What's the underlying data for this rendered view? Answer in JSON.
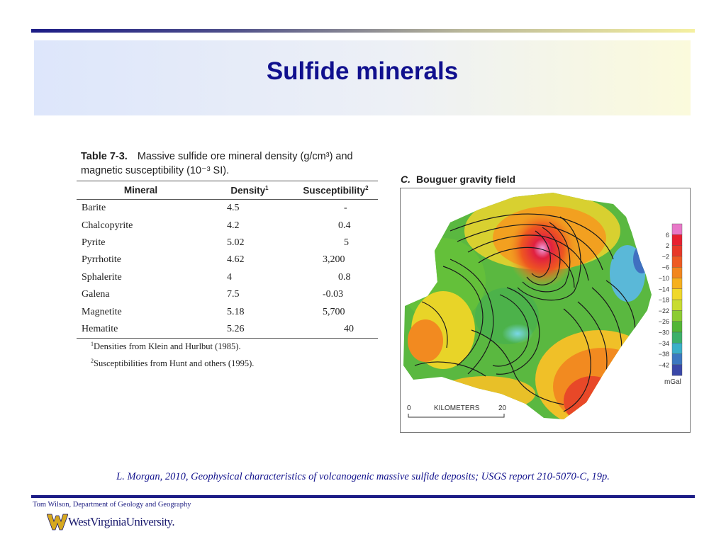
{
  "slide": {
    "title": "Sulfide minerals"
  },
  "table": {
    "number": "Table 7-3.",
    "caption_line1": "Massive sulfide ore mineral density (g/cm³) and",
    "caption_line2": "magnetic susceptibility (10⁻³ SI).",
    "headers": {
      "mineral": "Mineral",
      "density": "Density",
      "density_sup": "1",
      "susceptibility": "Susceptibility",
      "susceptibility_sup": "2"
    },
    "rows": [
      {
        "mineral": "Barite",
        "density": "4.5",
        "susceptibility": "-"
      },
      {
        "mineral": "Chalcopyrite",
        "density": "4.2",
        "susceptibility": "0.4"
      },
      {
        "mineral": "Pyrite",
        "density": "5.02",
        "susceptibility": "5"
      },
      {
        "mineral": "Pyrrhotite",
        "density": "4.62",
        "susceptibility": "3,200"
      },
      {
        "mineral": "Sphalerite",
        "density": "4",
        "susceptibility": "0.8"
      },
      {
        "mineral": "Galena",
        "density": "7.5",
        "susceptibility": "-0.03"
      },
      {
        "mineral": "Magnetite",
        "density": "5.18",
        "susceptibility": "5,700"
      },
      {
        "mineral": "Hematite",
        "density": "5.26",
        "susceptibility": "40"
      }
    ],
    "footnote1_sup": "1",
    "footnote1": "Densities from Klein and Hurlbut (1985).",
    "footnote2_sup": "2",
    "footnote2": "Susceptibilities from Hunt and others (1995)."
  },
  "map": {
    "label": "C.",
    "title": "Bouguer gravity field",
    "scale_start": "0",
    "scale_label": "KILOMETERS",
    "scale_end": "20",
    "legend_unit": "mGal",
    "legend_values": [
      "6",
      "2",
      "−2",
      "−6",
      "−10",
      "−14",
      "−18",
      "−22",
      "−26",
      "−30",
      "−34",
      "−38",
      "−42"
    ],
    "legend_colors": [
      "#e878c8",
      "#e82030",
      "#e83828",
      "#ee5a22",
      "#f2861e",
      "#f6b01e",
      "#f0d82a",
      "#c8dc30",
      "#8ccc32",
      "#52b636",
      "#3cb06a",
      "#3ab0c8",
      "#3c78c0",
      "#3a48a8"
    ]
  },
  "citation": "L. Morgan, 2010, Geophysical characteristics of volcanogenic massive sulfide deposits; USGS report 210-5070-C, 19p.",
  "footer": {
    "author": "Tom Wilson, Department of Geology and Geography",
    "university": "WestVirginiaUniversity."
  }
}
